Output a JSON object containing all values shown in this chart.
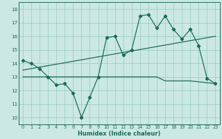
{
  "xlabel": "Humidex (Indice chaleur)",
  "bg_color": "#cce8e4",
  "line_color": "#1a6b5a",
  "xlim": [
    -0.5,
    23.5
  ],
  "ylim": [
    9.5,
    18.5
  ],
  "xticks": [
    0,
    1,
    2,
    3,
    4,
    5,
    6,
    7,
    8,
    9,
    10,
    11,
    12,
    13,
    14,
    15,
    16,
    17,
    18,
    19,
    20,
    21,
    22,
    23
  ],
  "yticks": [
    10,
    11,
    12,
    13,
    14,
    15,
    16,
    17,
    18
  ],
  "series1_x": [
    0,
    1,
    2,
    3,
    4,
    5,
    6,
    7,
    8,
    9,
    10,
    11,
    12,
    13,
    14,
    15,
    16,
    17,
    18,
    19,
    20,
    21,
    22,
    23
  ],
  "series1_y": [
    14.2,
    14.0,
    13.6,
    13.0,
    12.4,
    12.5,
    11.8,
    10.0,
    11.5,
    13.0,
    15.9,
    16.0,
    14.6,
    15.0,
    17.5,
    17.6,
    16.6,
    17.5,
    16.5,
    15.8,
    16.5,
    15.3,
    12.9,
    12.5
  ],
  "trend_x": [
    0,
    23
  ],
  "trend_y": [
    13.5,
    16.0
  ],
  "flat_x": [
    0,
    4,
    5,
    6,
    7,
    8,
    9,
    10,
    11,
    12,
    13,
    14,
    15,
    16,
    17,
    18,
    19,
    20,
    23
  ],
  "flat_y": [
    13.0,
    13.0,
    13.0,
    13.0,
    13.0,
    13.0,
    13.0,
    13.0,
    13.0,
    13.0,
    13.0,
    13.0,
    13.0,
    13.0,
    12.7,
    12.7,
    12.7,
    12.7,
    12.5
  ],
  "grid_color": "#9dcec6",
  "font_color": "#1a6b5a",
  "xtick_fontsize": 4.8,
  "ytick_fontsize": 5.2,
  "xlabel_fontsize": 6.0
}
